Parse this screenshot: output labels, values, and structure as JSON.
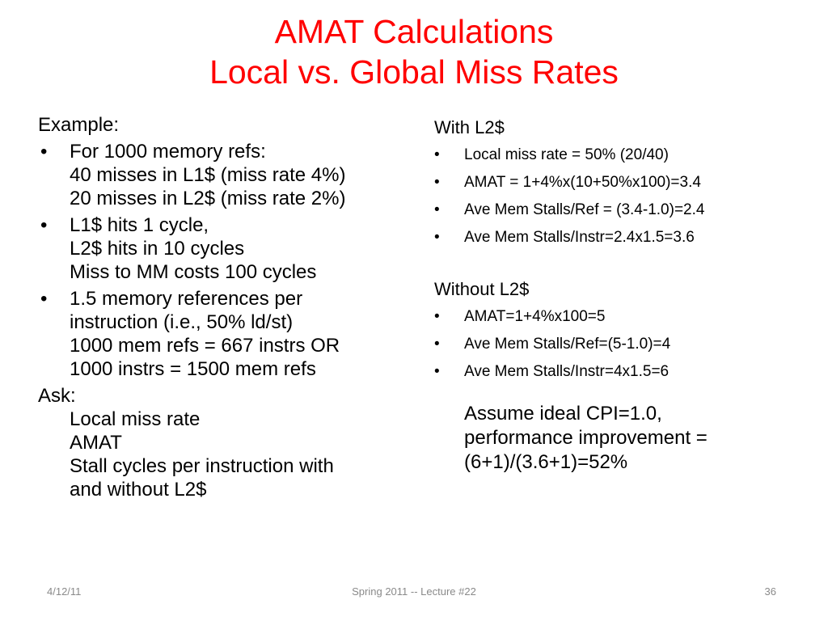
{
  "title": {
    "line1": "AMAT Calculations",
    "line2": "Local vs. Global Miss Rates"
  },
  "left": {
    "example_label": "Example:",
    "bullets": [
      {
        "lines": [
          "For 1000 memory refs:",
          "40 misses in L1$ (miss rate 4%)",
          "20 misses in L2$ (miss rate 2%)"
        ]
      },
      {
        "lines": [
          "L1$ hits 1 cycle,",
          "L2$ hits in 10 cycles",
          "Miss to MM costs 100 cycles"
        ]
      },
      {
        "lines": [
          "1.5 memory references per",
          "instruction (i.e., 50% ld/st)",
          "1000 mem refs = 667 instrs OR",
          "1000 instrs = 1500 mem refs"
        ]
      }
    ],
    "ask_label": "Ask:",
    "ask_items": [
      "Local miss rate",
      "AMAT",
      "Stall cycles per instruction with",
      "and without L2$"
    ]
  },
  "right": {
    "with_heading": "With L2$",
    "with_items": [
      "Local miss rate = 50% (20/40)",
      "AMAT = 1+4%x(10+50%x100)=3.4",
      "Ave Mem Stalls/Ref = (3.4-1.0)=2.4",
      "Ave Mem Stalls/Instr=2.4x1.5=3.6"
    ],
    "without_heading": "Without L2$",
    "without_items": [
      "AMAT=1+4%x100=5",
      "Ave Mem Stalls/Ref=(5-1.0)=4",
      "Ave Mem Stalls/Instr=4x1.5=6"
    ],
    "note_lines": [
      "Assume ideal CPI=1.0,",
      "performance improvement =",
      "(6+1)/(3.6+1)=52%"
    ]
  },
  "footer": {
    "date": "4/12/11",
    "center": "Spring 2011 -- Lecture #22",
    "page": "36"
  },
  "colors": {
    "title": "#ff0000",
    "footer": "#8a8a8a"
  }
}
